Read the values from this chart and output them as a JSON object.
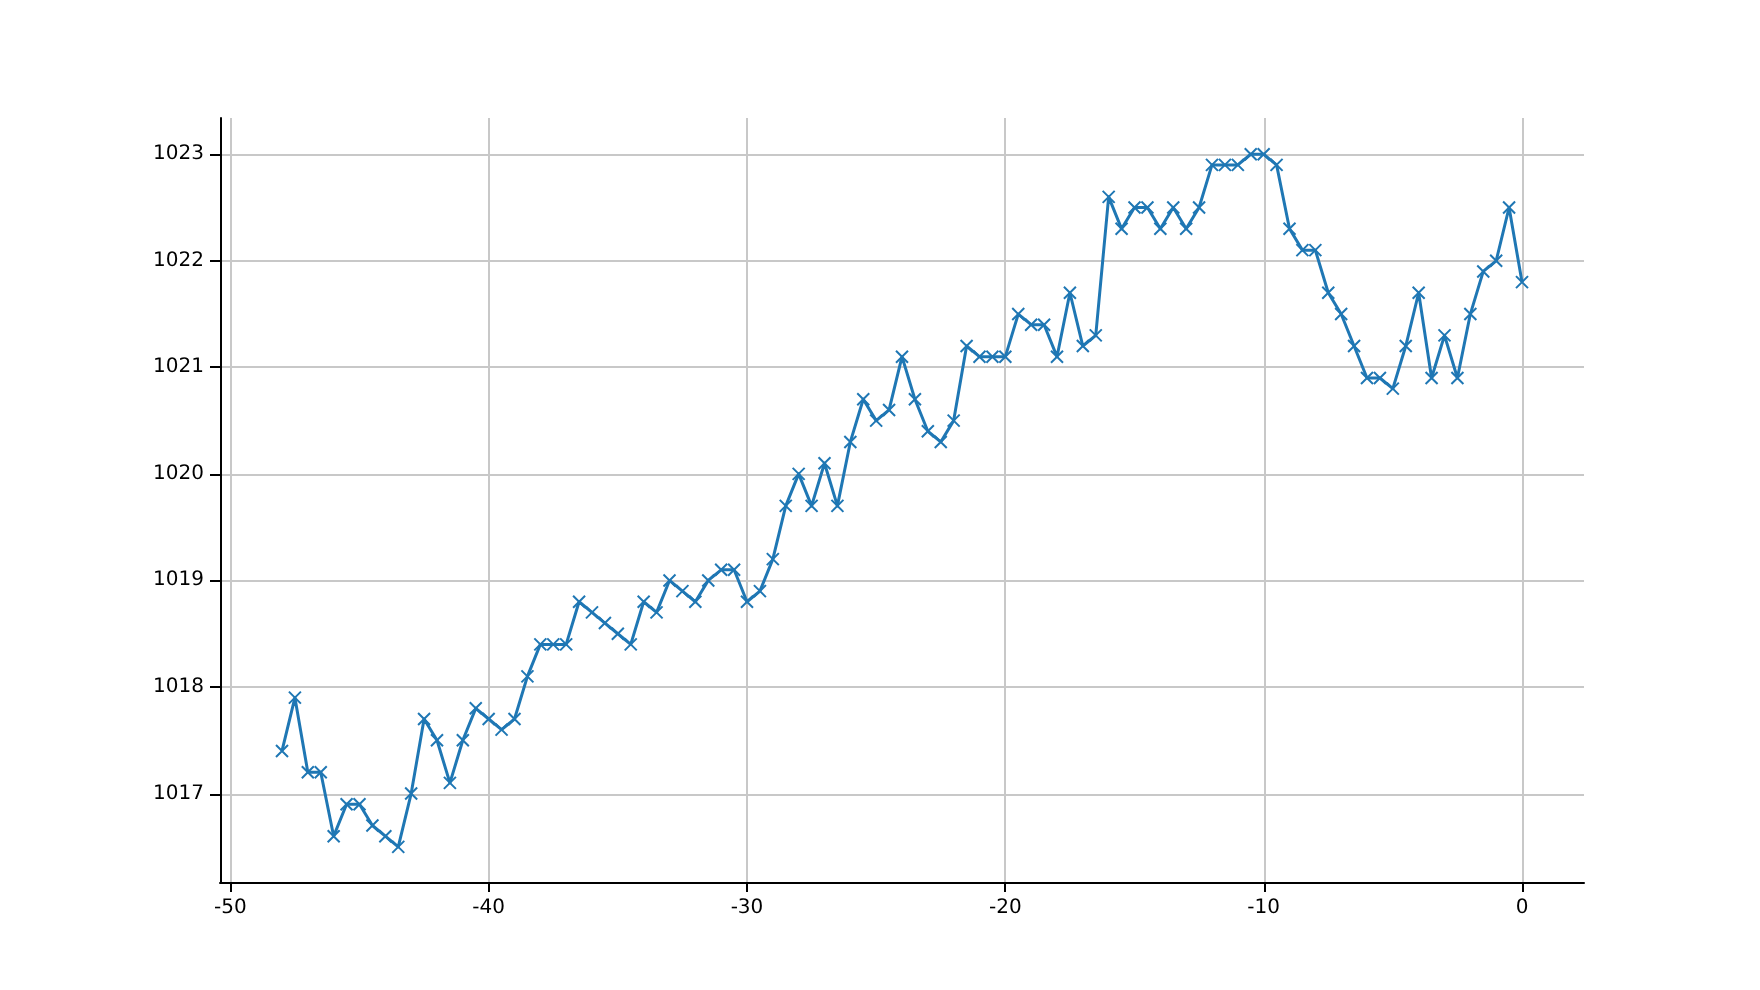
{
  "chart_data": {
    "type": "line",
    "marker": "cross",
    "grid": true,
    "xlim": [
      -50.4,
      2.4
    ],
    "xticks": [
      -50,
      -40,
      -30,
      -20,
      -10,
      0
    ],
    "ylim": [
      1016.17,
      1023.34
    ],
    "yticks": [
      1017,
      1018,
      1019,
      1020,
      1021,
      1022,
      1023
    ],
    "series": [
      {
        "color": "#1f77b4",
        "x": [
          -48,
          -47.5,
          -47,
          -46.5,
          -46,
          -45.5,
          -45,
          -44.5,
          -44,
          -43.5,
          -43,
          -42.5,
          -42,
          -41.5,
          -41,
          -40.5,
          -40,
          -39.5,
          -39,
          -38.5,
          -38,
          -37.5,
          -37,
          -36.5,
          -36,
          -35.5,
          -35,
          -34.5,
          -34,
          -33.5,
          -33,
          -32.5,
          -32,
          -31.5,
          -31,
          -30.5,
          -30,
          -29.5,
          -29,
          -28.5,
          -28,
          -27.5,
          -27,
          -26.5,
          -26,
          -25.5,
          -25,
          -24.5,
          -24,
          -23.5,
          -23,
          -22.5,
          -22,
          -21.5,
          -21,
          -20.5,
          -20,
          -19.5,
          -19,
          -18.5,
          -18,
          -17.5,
          -17,
          -16.5,
          -16,
          -15.5,
          -15,
          -14.5,
          -14,
          -13.5,
          -13,
          -12.5,
          -12,
          -11.5,
          -11,
          -10.5,
          -10,
          -9.5,
          -9,
          -8.5,
          -8,
          -7.5,
          -7,
          -6.5,
          -6,
          -5.5,
          -5,
          -4.5,
          -4,
          -3.5,
          -3,
          -2.5,
          -2,
          -1.5,
          -1,
          -0.5,
          0
        ],
        "values": [
          1017.4,
          1017.9,
          1017.2,
          1017.2,
          1016.6,
          1016.9,
          1016.9,
          1016.7,
          1016.6,
          1016.5,
          1017.0,
          1017.7,
          1017.5,
          1017.1,
          1017.5,
          1017.8,
          1017.7,
          1017.6,
          1017.7,
          1018.1,
          1018.4,
          1018.4,
          1018.4,
          1018.8,
          1018.7,
          1018.6,
          1018.5,
          1018.4,
          1018.8,
          1018.7,
          1019.0,
          1018.9,
          1018.8,
          1019.0,
          1019.1,
          1019.1,
          1018.8,
          1018.9,
          1019.2,
          1019.7,
          1020.0,
          1019.7,
          1020.1,
          1019.7,
          1020.3,
          1020.7,
          1020.5,
          1020.6,
          1021.1,
          1020.7,
          1020.4,
          1020.3,
          1020.5,
          1021.2,
          1021.1,
          1021.1,
          1021.1,
          1021.5,
          1021.4,
          1021.4,
          1021.1,
          1021.7,
          1021.2,
          1021.3,
          1022.6,
          1022.3,
          1022.5,
          1022.5,
          1022.3,
          1022.5,
          1022.3,
          1022.5,
          1022.9,
          1022.9,
          1022.9,
          1023.0,
          1023.0,
          1022.9,
          1022.3,
          1022.1,
          1022.1,
          1021.7,
          1021.5,
          1021.2,
          1020.9,
          1020.9,
          1020.8,
          1021.2,
          1021.7,
          1020.9,
          1021.3,
          1020.9,
          1021.5,
          1021.9,
          1022.0,
          1022.5,
          1021.8
        ]
      }
    ]
  }
}
